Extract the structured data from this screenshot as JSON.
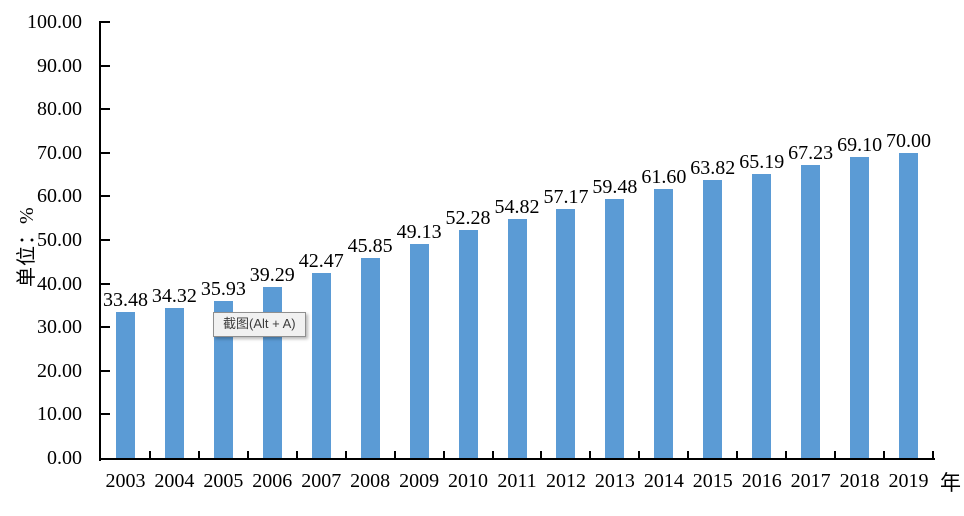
{
  "chart_data": {
    "type": "bar",
    "title": "",
    "categories": [
      "2003",
      "2004",
      "2005",
      "2006",
      "2007",
      "2008",
      "2009",
      "2010",
      "2011",
      "2012",
      "2013",
      "2014",
      "2015",
      "2016",
      "2017",
      "2018",
      "2019"
    ],
    "values": [
      33.48,
      34.32,
      35.93,
      39.29,
      42.47,
      45.85,
      49.13,
      52.28,
      54.82,
      57.17,
      59.48,
      61.6,
      63.82,
      65.19,
      67.23,
      69.1,
      70.0
    ],
    "value_labels": [
      "33.48",
      "34.32",
      "35.93",
      "39.29",
      "42.47",
      "45.85",
      "49.13",
      "52.28",
      "54.82",
      "57.17",
      "59.48",
      "61.60",
      "63.82",
      "65.19",
      "67.23",
      "69.10",
      "70.00"
    ],
    "xlabel": "年",
    "ylabel": "单位：%",
    "ylim": [
      0,
      100
    ],
    "ytick_labels": [
      "0.00",
      "10.00",
      "20.00",
      "30.00",
      "40.00",
      "50.00",
      "60.00",
      "70.00",
      "80.00",
      "90.00",
      "100.00"
    ],
    "grid": false,
    "legend_position": "none",
    "bar_color": "#5b9bd5",
    "axis_color": "#000000"
  },
  "tooltip": {
    "text": "截图(Alt + A)"
  }
}
